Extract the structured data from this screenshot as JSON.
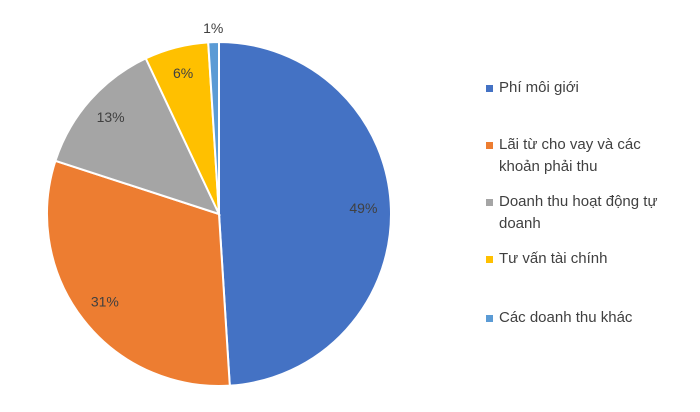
{
  "chart_data": {
    "type": "pie",
    "categories": [
      "Phí môi giới",
      "Lãi từ cho vay và các khoản phải thu",
      "Doanh thu hoạt động tự doanh",
      "Tư vấn tài chính",
      "Các doanh thu khác"
    ],
    "values": [
      49,
      31,
      13,
      6,
      1
    ],
    "value_labels": [
      "49%",
      "31%",
      "13%",
      "6%",
      "1%"
    ],
    "colors": [
      "#4472c4",
      "#ed7d31",
      "#a5a5a5",
      "#ffc000",
      "#5b9bd5"
    ],
    "legend": "right"
  }
}
